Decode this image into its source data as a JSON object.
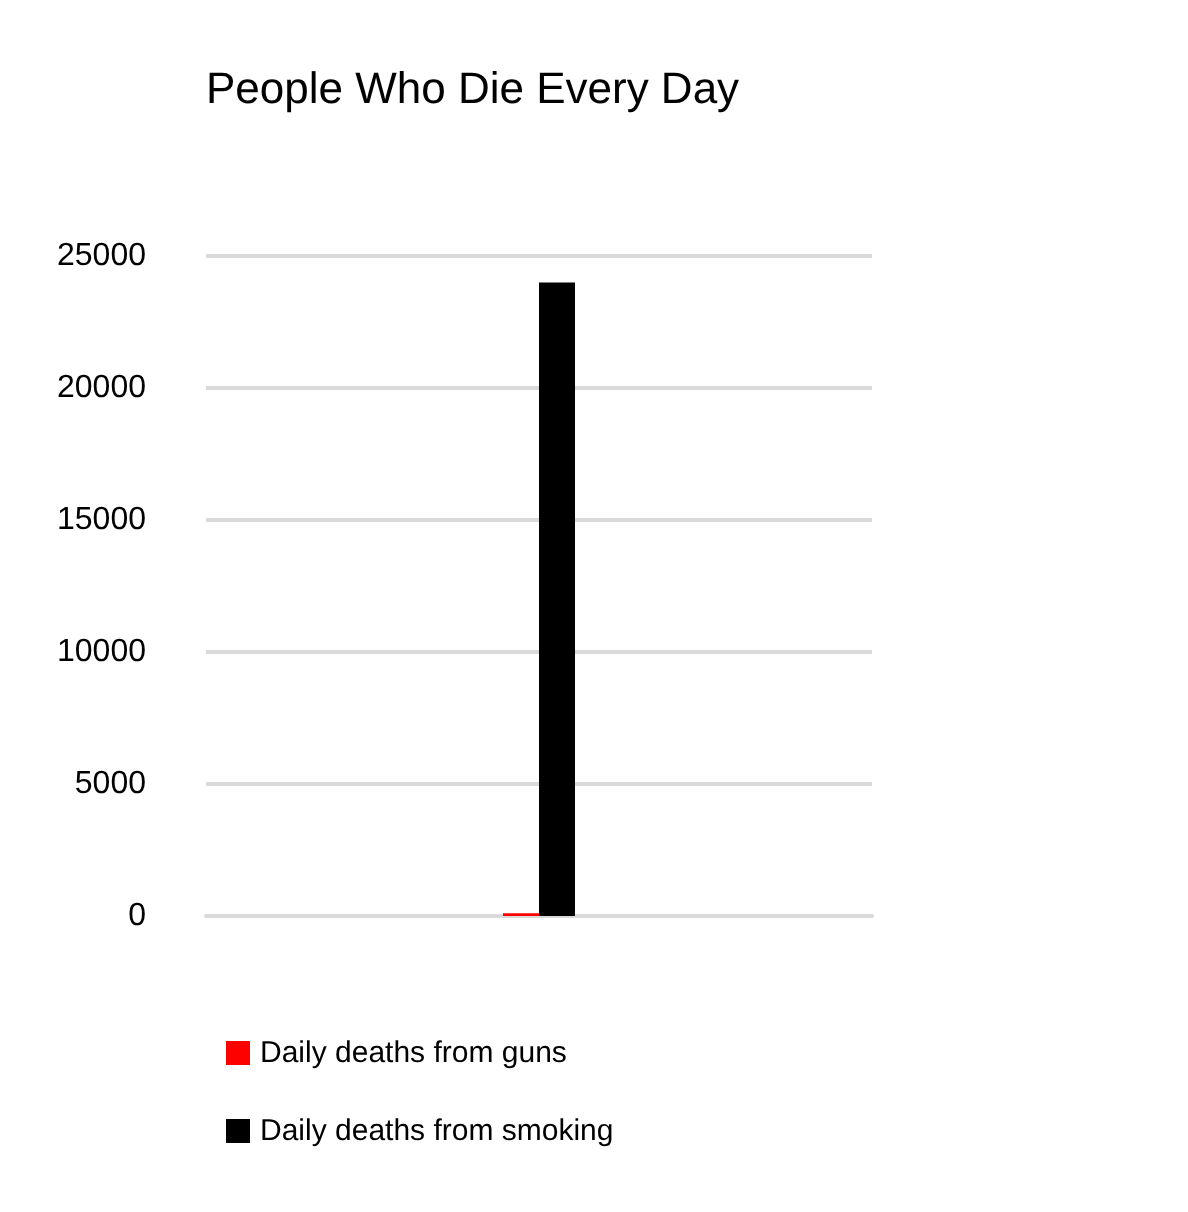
{
  "chart_data": {
    "type": "bar",
    "title": "People Who Die Every Day",
    "categories": [
      null
    ],
    "series": [
      {
        "name": "Daily deaths from guns",
        "color": "#ff0000",
        "values": [
          100
        ]
      },
      {
        "name": "Daily deaths from smoking",
        "color": "#000000",
        "values": [
          24000
        ]
      }
    ],
    "ylim": [
      0,
      25000
    ],
    "yticks": [
      0,
      5000,
      10000,
      15000,
      20000,
      25000
    ],
    "grid": "y",
    "legend": "bottom left"
  }
}
